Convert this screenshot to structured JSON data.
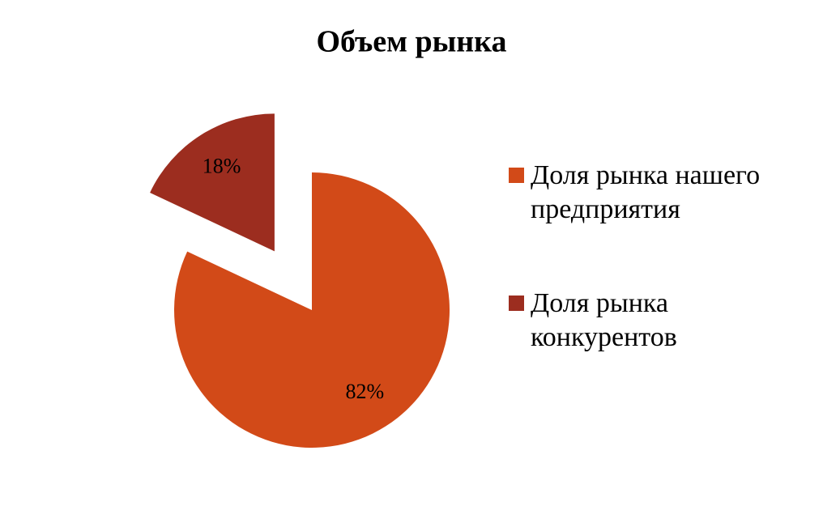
{
  "chart_data": {
    "type": "pie",
    "title": "Объем рынка",
    "categories": [
      "Доля рынка нашего предприятия",
      "Доля рынка конкурентов"
    ],
    "values": [
      82,
      18
    ],
    "value_labels": [
      "82%",
      "18%"
    ],
    "colors": [
      "#d24a18",
      "#9c2d1f"
    ]
  }
}
